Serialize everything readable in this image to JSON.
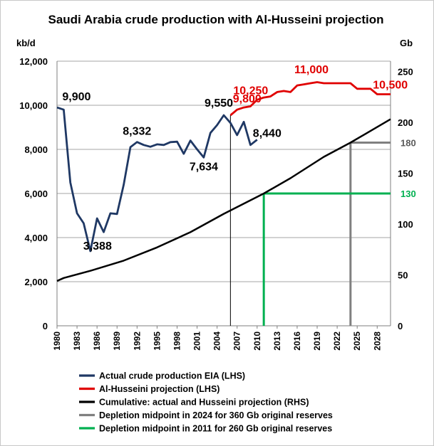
{
  "chart_data": {
    "type": "line",
    "title": "Saudi Arabia crude production with Al-Husseini projection",
    "ylabel_left": "kb/d",
    "ylabel_right": "Gb",
    "ylim_left": [
      0,
      12000
    ],
    "ylim_right": [
      0,
      260
    ],
    "yticks_left": [
      "0",
      "2,000",
      "4,000",
      "6,000",
      "8,000",
      "10,000",
      "12,000"
    ],
    "yticks_right": [
      "0",
      "50",
      "100",
      "150",
      "200",
      "250"
    ],
    "yticks_right_values": [
      0,
      50,
      100,
      150,
      200,
      250
    ],
    "xlim": [
      1980,
      2030
    ],
    "xticks": [
      "1980",
      "1983",
      "1986",
      "1989",
      "1992",
      "1995",
      "1998",
      "2001",
      "2004",
      "2007",
      "2010",
      "2013",
      "2016",
      "2019",
      "2022",
      "2025",
      "2028"
    ],
    "grid": true,
    "legend_position": "bottom",
    "series": [
      {
        "name": "Actual crude production EIA (LHS)",
        "axis": "left",
        "color": "#1f3864",
        "x": [
          1980,
          1981,
          1982,
          1983,
          1984,
          1985,
          1986,
          1987,
          1988,
          1989,
          1990,
          1991,
          1992,
          1993,
          1994,
          1995,
          1996,
          1997,
          1998,
          1999,
          2000,
          2001,
          2002,
          2003,
          2004,
          2005,
          2006,
          2007,
          2008,
          2009,
          2010
        ],
        "y": [
          9900,
          9800,
          6500,
          5100,
          4650,
          3388,
          4870,
          4250,
          5100,
          5070,
          6400,
          8100,
          8332,
          8200,
          8120,
          8230,
          8200,
          8330,
          8350,
          7800,
          8400,
          8000,
          7634,
          8750,
          9100,
          9550,
          9200,
          8650,
          9250,
          8200,
          8440
        ]
      },
      {
        "name": "Al-Husseini projection (LHS)",
        "axis": "left",
        "color": "#e00000",
        "x": [
          2006,
          2007,
          2008,
          2009,
          2010,
          2011,
          2012,
          2013,
          2014,
          2015,
          2016,
          2017,
          2018,
          2019,
          2020,
          2021,
          2022,
          2023,
          2024,
          2025,
          2026,
          2027,
          2028,
          2029,
          2030
        ],
        "y": [
          9550,
          9800,
          9900,
          9950,
          10250,
          10350,
          10400,
          10600,
          10650,
          10600,
          10900,
          10950,
          11000,
          11050,
          11000,
          11000,
          11000,
          11000,
          11000,
          10750,
          10750,
          10750,
          10500,
          10500,
          10500
        ]
      },
      {
        "name": "Cumulative: actual and Husseini projection (RHS)",
        "axis": "right",
        "color": "#000000",
        "x": [
          1980,
          1981,
          1985,
          1990,
          1995,
          2000,
          2005,
          2011,
          2015,
          2020,
          2024,
          2030
        ],
        "y": [
          44,
          47,
          54,
          64,
          77,
          92,
          110,
          130,
          145,
          166,
          180,
          203
        ]
      }
    ],
    "reference_lines": [
      {
        "name": "Depletion midpoint in 2024 for 360 Gb original reserves",
        "color": "#808080",
        "x": 2024,
        "y": 180,
        "label": "180"
      },
      {
        "name": "Depletion midpoint in 2011 for 260 Gb original reserves",
        "color": "#00b050",
        "x": 2011,
        "y": 130,
        "label": "130"
      }
    ],
    "marker_line_x": 2006,
    "annotations": [
      {
        "text": "9,900",
        "x": 1981,
        "y": 9900,
        "color": "#000000"
      },
      {
        "text": "3,388",
        "x": 1985,
        "y": 3388,
        "color": "#000000"
      },
      {
        "text": "8,332",
        "x": 1992,
        "y": 8332,
        "color": "#000000"
      },
      {
        "text": "7,634",
        "x": 2002,
        "y": 7634,
        "color": "#000000"
      },
      {
        "text": "9,550",
        "x": 2005,
        "y": 9550,
        "color": "#000000"
      },
      {
        "text": "8,440",
        "x": 2010,
        "y": 8440,
        "color": "#000000"
      },
      {
        "text": "9,800",
        "x": 2007,
        "y": 9800,
        "color": "#e00000"
      },
      {
        "text": "10,250",
        "x": 2010,
        "y": 10250,
        "color": "#e00000"
      },
      {
        "text": "11,000",
        "x": 2019,
        "y": 11000,
        "color": "#e00000"
      },
      {
        "text": "10,500",
        "x": 2028,
        "y": 10500,
        "color": "#e00000"
      }
    ]
  }
}
